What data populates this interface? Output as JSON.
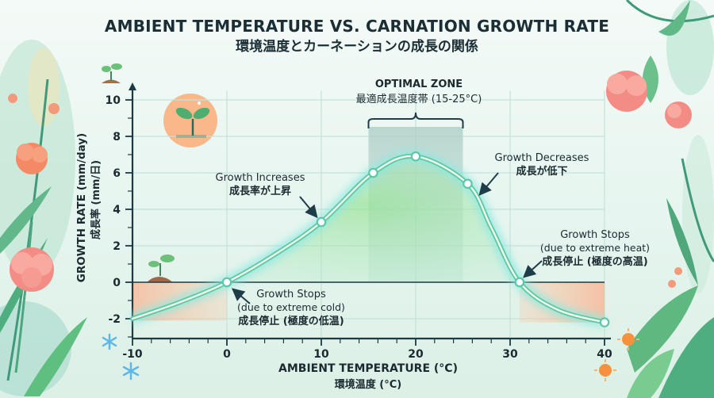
{
  "chart_data": {
    "type": "line",
    "title": "AMBIENT TEMPERATURE VS. CARNATION GROWTH RATE",
    "subtitle": "環境温度とカーネーションの成長の関係",
    "xlabel": "AMBIENT TEMPERATURE (°C)",
    "xlabel_jp": "環境温度 (°C)",
    "ylabel": "GROWTH RATE (mm/day)",
    "ylabel_jp": "成長率 (mm/日)",
    "xlim": [
      -10,
      40
    ],
    "ylim": [
      -3,
      10.5
    ],
    "xticks": [
      -10,
      0,
      10,
      20,
      30,
      40
    ],
    "yticks": [
      -2,
      0,
      2,
      4,
      6,
      8,
      10
    ],
    "grid": true,
    "series": [
      {
        "name": "Growth rate",
        "color": "#5cc8a8",
        "x": [
          -10,
          -5,
          0,
          5,
          10,
          15.5,
          20,
          25.5,
          28,
          31,
          35,
          40
        ],
        "y": [
          -2.0,
          -1.1,
          0.0,
          1.5,
          3.3,
          6.0,
          6.9,
          5.4,
          3.0,
          0.0,
          -1.5,
          -2.2
        ],
        "markers": [
          [
            0,
            0.0
          ],
          [
            10,
            3.3
          ],
          [
            15.5,
            6.0
          ],
          [
            20,
            6.9
          ],
          [
            25.5,
            5.4
          ],
          [
            31,
            0.0
          ],
          [
            40,
            -2.2
          ]
        ]
      }
    ],
    "optimal_zone": {
      "x_start": 15,
      "x_end": 25,
      "label": "OPTIMAL ZONE",
      "label_jp": "最適成長温度帯 (15-25°C)"
    },
    "annotations": [
      {
        "id": "increase",
        "lines": [
          "Growth Increases",
          "成長率が上昇"
        ],
        "target": [
          10,
          3.3
        ]
      },
      {
        "id": "decrease",
        "lines": [
          "Growth Decreases",
          "成長が低下"
        ],
        "target": [
          26,
          4.9
        ]
      },
      {
        "id": "stop-cold",
        "lines": [
          "Growth Stops",
          "(due to extreme cold)",
          "成長停止 (極度の低温)"
        ],
        "target": [
          0,
          0
        ]
      },
      {
        "id": "stop-heat",
        "lines": [
          "Growth Stops",
          "(due to extreme heat)",
          "成長停止 (極度の高温)"
        ],
        "target": [
          31,
          0
        ]
      }
    ],
    "colors": {
      "axis": "#1c3a44",
      "grid": "#c5e2d8",
      "zone": "#9cc9bd",
      "negative_fill": "#f8c7a4",
      "positive_fill": "#9fe39a",
      "curve": "#5cc8a8"
    }
  }
}
